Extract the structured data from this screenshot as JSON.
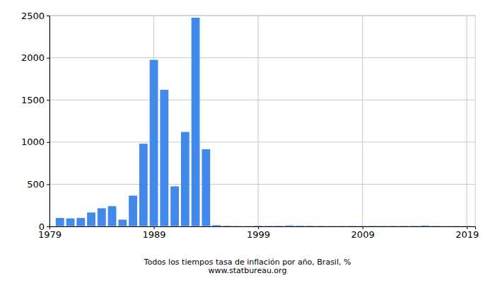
{
  "chart_data": {
    "type": "bar",
    "title": "Todos los tiempos tasa de inflación por año, Brasil, %",
    "subtitle": "www.statbureau.org",
    "x": [
      1980,
      1981,
      1982,
      1983,
      1984,
      1985,
      1986,
      1987,
      1988,
      1989,
      1990,
      1991,
      1992,
      1993,
      1994,
      1995,
      1996,
      1997,
      1998,
      1999,
      2000,
      2001,
      2002,
      2003,
      2004,
      2005,
      2006,
      2007,
      2008,
      2009,
      2010,
      2011,
      2012,
      2013,
      2014,
      2015,
      2016,
      2017,
      2018,
      2019
    ],
    "values": [
      100,
      95,
      100,
      165,
      215,
      240,
      80,
      365,
      980,
      1975,
      1620,
      475,
      1120,
      2475,
      915,
      15,
      9,
      5,
      2,
      9,
      6,
      8,
      12,
      9,
      8,
      6,
      3,
      4,
      6,
      4,
      6,
      6,
      6,
      6,
      6,
      11,
      6,
      3,
      4,
      4
    ],
    "color": "#4189ea",
    "xlim": [
      1979,
      2019.8
    ],
    "xticks": [
      1979,
      1989,
      1999,
      2009,
      2019
    ],
    "ylim": [
      0,
      2500
    ],
    "yticks": [
      0,
      500,
      1000,
      1500,
      2000,
      2500
    ],
    "grid": true
  }
}
